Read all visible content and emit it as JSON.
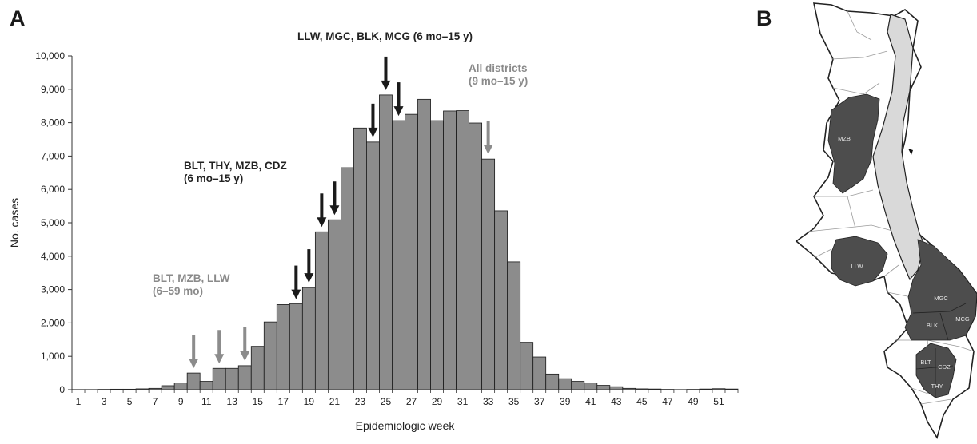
{
  "panel_a_label": "A",
  "panel_b_label": "B",
  "chart_data": {
    "type": "bar",
    "title": "",
    "xlabel": "Epidemiologic week",
    "ylabel": "No. cases",
    "ylim": [
      0,
      10000
    ],
    "yticks": [
      0,
      1000,
      2000,
      3000,
      4000,
      5000,
      6000,
      7000,
      8000,
      9000,
      10000
    ],
    "ytick_labels": [
      "0",
      "1,000",
      "2,000",
      "3,000",
      "4,000",
      "5,000",
      "6,000",
      "7,000",
      "8,000",
      "9,000",
      "10,000"
    ],
    "xtick_labels": [
      "1",
      "3",
      "5",
      "7",
      "9",
      "11",
      "13",
      "15",
      "17",
      "19",
      "21",
      "23",
      "25",
      "27",
      "29",
      "31",
      "33",
      "35",
      "37",
      "39",
      "41",
      "43",
      "45",
      "47",
      "49",
      "51"
    ],
    "categories": [
      1,
      2,
      3,
      4,
      5,
      6,
      7,
      8,
      9,
      10,
      11,
      12,
      13,
      14,
      15,
      16,
      17,
      18,
      19,
      20,
      21,
      22,
      23,
      24,
      25,
      26,
      27,
      28,
      29,
      30,
      31,
      32,
      33,
      34,
      35,
      36,
      37,
      38,
      39,
      40,
      41,
      42,
      43,
      44,
      45,
      46,
      47,
      48,
      49,
      50,
      51,
      52
    ],
    "values": [
      5,
      5,
      10,
      15,
      15,
      25,
      40,
      120,
      200,
      500,
      250,
      640,
      640,
      720,
      1300,
      2030,
      2550,
      2570,
      3060,
      4730,
      5090,
      6650,
      7840,
      7420,
      8830,
      8060,
      8250,
      8700,
      8060,
      8350,
      8360,
      7990,
      6910,
      5360,
      3830,
      1420,
      980,
      470,
      330,
      250,
      200,
      130,
      90,
      40,
      25,
      20,
      10,
      5,
      10,
      20,
      30,
      20
    ],
    "grid": false,
    "bar_color": "#8c8c8c",
    "annotations": [
      {
        "lines": [
          "LLW, MGC, BLK, MCG (6 mo–15 y)"
        ],
        "color": "#222222"
      },
      {
        "lines": [
          "All districts",
          "(9 mo–15 y)"
        ],
        "color": "#8a8a8a"
      },
      {
        "lines": [
          "BLT, THY, MZB, CDZ",
          "(6 mo–15 y)"
        ],
        "color": "#222222"
      },
      {
        "lines": [
          "BLT, MZB, LLW",
          "(6–59 mo)"
        ],
        "color": "#8a8a8a"
      }
    ],
    "arrows": [
      {
        "week": 10,
        "value": 500,
        "color": "gray"
      },
      {
        "week": 12,
        "value": 640,
        "color": "gray"
      },
      {
        "week": 14,
        "value": 720,
        "color": "gray"
      },
      {
        "week": 18,
        "value": 2570,
        "color": "black"
      },
      {
        "week": 19,
        "value": 3060,
        "color": "black"
      },
      {
        "week": 20,
        "value": 4730,
        "color": "black"
      },
      {
        "week": 21,
        "value": 5090,
        "color": "black"
      },
      {
        "week": 24,
        "value": 7420,
        "color": "black"
      },
      {
        "week": 25,
        "value": 8830,
        "color": "black"
      },
      {
        "week": 26,
        "value": 8060,
        "color": "black"
      },
      {
        "week": 33,
        "value": 6910,
        "color": "gray"
      }
    ]
  },
  "map": {
    "region_labels": [
      "MZB",
      "LLW",
      "MGC",
      "MCG",
      "BLK",
      "BLT",
      "CDZ",
      "THY"
    ],
    "highlight_color": "#4d4d4d",
    "lake_color": "#d9d9d9"
  }
}
